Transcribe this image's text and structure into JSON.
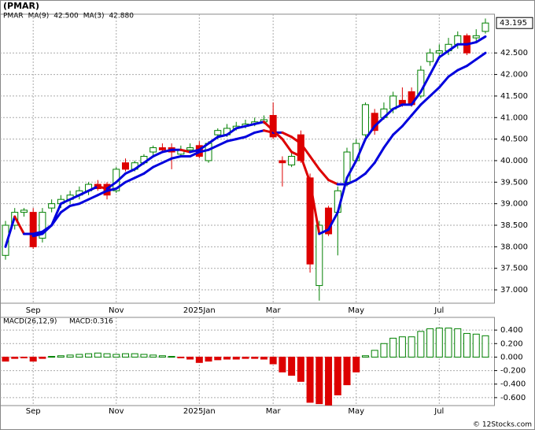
{
  "chart_data": {
    "type": "candlestick",
    "title": "(PMAR)",
    "ticker": "PMAR",
    "ticker_color": "#008000",
    "legend": [
      {
        "name": "MA(9)",
        "value": "42.500"
      },
      {
        "name": "MA(3)",
        "value": "42.880"
      }
    ],
    "categories": [
      null,
      null,
      null,
      "Sep",
      null,
      null,
      null,
      null,
      null,
      null,
      null,
      null,
      "Nov",
      null,
      null,
      null,
      null,
      null,
      null,
      null,
      null,
      "2025Jan",
      null,
      null,
      null,
      null,
      null,
      null,
      null,
      "Mar",
      null,
      null,
      null,
      null,
      null,
      null,
      null,
      null,
      "May",
      null,
      null,
      null,
      null,
      null,
      null,
      null,
      null,
      "Jul",
      null,
      null,
      null,
      null,
      null
    ],
    "open": [
      37.8,
      38.5,
      38.8,
      38.8,
      38.2,
      38.9,
      39.0,
      39.1,
      39.2,
      39.3,
      39.45,
      39.45,
      39.3,
      39.95,
      39.8,
      39.95,
      40.2,
      40.3,
      40.3,
      40.15,
      40.25,
      40.35,
      40.0,
      40.6,
      40.6,
      40.75,
      40.8,
      40.85,
      40.9,
      41.05,
      40.0,
      39.9,
      40.6,
      39.6,
      37.1,
      38.9,
      38.8,
      39.5,
      40.0,
      40.6,
      41.1,
      41.0,
      41.2,
      41.4,
      41.6,
      41.5,
      42.3,
      42.5,
      42.55,
      42.7,
      42.9,
      42.85,
      43.0
    ],
    "high": [
      38.6,
      38.9,
      38.9,
      38.9,
      38.9,
      39.1,
      39.2,
      39.3,
      39.4,
      39.5,
      39.55,
      39.5,
      39.85,
      40.05,
      40.0,
      40.15,
      40.35,
      40.4,
      40.4,
      40.35,
      40.4,
      40.45,
      40.45,
      40.75,
      40.85,
      40.9,
      40.95,
      41.0,
      41.05,
      41.35,
      40.1,
      40.2,
      40.7,
      39.7,
      38.6,
      38.95,
      39.4,
      40.3,
      40.5,
      41.35,
      41.2,
      41.35,
      41.6,
      41.7,
      41.7,
      42.2,
      42.6,
      42.7,
      42.85,
      43.0,
      42.95,
      43.05,
      43.3
    ],
    "low": [
      37.7,
      38.4,
      38.7,
      37.95,
      38.1,
      38.8,
      38.9,
      39.0,
      39.1,
      39.2,
      39.3,
      39.1,
      39.25,
      39.75,
      39.75,
      39.9,
      40.1,
      40.2,
      39.8,
      40.1,
      40.2,
      40.05,
      39.95,
      40.5,
      40.55,
      40.7,
      40.75,
      40.8,
      40.85,
      40.5,
      39.4,
      39.85,
      39.95,
      37.4,
      36.75,
      38.25,
      37.8,
      39.4,
      39.95,
      40.55,
      40.6,
      40.95,
      41.1,
      41.25,
      41.25,
      41.45,
      42.2,
      42.4,
      42.45,
      42.6,
      42.45,
      42.75,
      42.95
    ],
    "close": [
      38.5,
      38.8,
      38.85,
      38.0,
      38.8,
      39.0,
      39.1,
      39.2,
      39.3,
      39.45,
      39.35,
      39.2,
      39.8,
      39.8,
      39.95,
      40.1,
      40.3,
      40.25,
      40.2,
      40.25,
      40.3,
      40.1,
      40.4,
      40.7,
      40.75,
      40.8,
      40.85,
      40.9,
      40.95,
      40.55,
      39.95,
      40.1,
      40.0,
      37.6,
      38.5,
      38.3,
      39.3,
      40.2,
      40.4,
      41.3,
      40.7,
      41.2,
      41.5,
      41.3,
      41.3,
      42.1,
      42.5,
      42.55,
      42.7,
      42.9,
      42.5,
      42.9,
      43.195
    ],
    "up_color": "#008000",
    "down_color": "#dd0000",
    "series": [
      {
        "name": "MA(9)",
        "color": "#0000dd",
        "values": [
          null,
          null,
          null,
          38.25,
          38.3,
          38.5,
          38.8,
          38.95,
          39.0,
          39.1,
          39.2,
          39.3,
          39.35,
          39.5,
          39.6,
          39.7,
          39.85,
          39.95,
          40.05,
          40.1,
          40.1,
          40.2,
          40.25,
          40.35,
          40.45,
          40.5,
          40.55,
          40.65,
          40.7,
          40.65,
          40.65,
          40.55,
          40.4,
          40.1,
          39.8,
          39.55,
          39.45,
          39.45,
          39.55,
          39.7,
          39.95,
          40.3,
          40.6,
          40.8,
          41.05,
          41.3,
          41.5,
          41.7,
          41.95,
          42.1,
          42.2,
          42.35,
          42.5
        ]
      },
      {
        "name": "MA(3)",
        "color": "#0000dd",
        "values": [
          38.0,
          38.7,
          38.3,
          38.3,
          38.35,
          38.5,
          39.0,
          39.1,
          39.2,
          39.3,
          39.4,
          39.35,
          39.5,
          39.7,
          39.8,
          39.95,
          40.1,
          40.2,
          40.25,
          40.25,
          40.2,
          40.25,
          40.4,
          40.55,
          40.6,
          40.75,
          40.8,
          40.85,
          40.9,
          40.7,
          40.5,
          40.2,
          40.1,
          39.5,
          38.3,
          38.4,
          38.8,
          39.6,
          40.0,
          40.5,
          40.8,
          41.0,
          41.2,
          41.3,
          41.3,
          41.6,
          42.0,
          42.4,
          42.55,
          42.7,
          42.7,
          42.75,
          42.88
        ]
      }
    ],
    "falling_color": "#dd0000",
    "price_tag": {
      "value": 43.195,
      "label": "43.195"
    },
    "ylim": [
      36.69,
      43.4
    ],
    "yticks": [
      {
        "value": 42.5,
        "label": "42.500"
      },
      {
        "value": 42,
        "label": "42.000"
      },
      {
        "value": 41.5,
        "label": "41.500"
      },
      {
        "value": 41,
        "label": "41.000"
      },
      {
        "value": 40.5,
        "label": "40.500"
      },
      {
        "value": 40,
        "label": "40.000"
      },
      {
        "value": 39.5,
        "label": "39.500"
      },
      {
        "value": 39,
        "label": "39.000"
      },
      {
        "value": 38.5,
        "label": "38.500"
      },
      {
        "value": 38,
        "label": "38.000"
      },
      {
        "value": 37.5,
        "label": "37.500"
      },
      {
        "value": 37,
        "label": "37.000"
      }
    ],
    "grid": true,
    "macd": {
      "title": "MACD(26,12,9)",
      "label": "MACD:0.316",
      "values": [
        -0.06,
        -0.02,
        -0.01,
        -0.06,
        -0.02,
        0.01,
        0.02,
        0.03,
        0.04,
        0.05,
        0.06,
        0.05,
        0.04,
        0.05,
        0.05,
        0.04,
        0.03,
        0.02,
        0.01,
        -0.01,
        -0.03,
        -0.08,
        -0.06,
        -0.04,
        -0.03,
        -0.03,
        -0.02,
        -0.02,
        -0.03,
        -0.1,
        -0.22,
        -0.27,
        -0.36,
        -0.67,
        -0.69,
        -0.71,
        -0.56,
        -0.41,
        -0.22,
        0.02,
        0.1,
        0.2,
        0.28,
        0.3,
        0.3,
        0.38,
        0.42,
        0.43,
        0.43,
        0.42,
        0.35,
        0.34,
        0.316
      ],
      "ylim": [
        -0.718,
        0.588
      ],
      "yticks": [
        {
          "value": 0.4,
          "label": "0.400"
        },
        {
          "value": 0.2,
          "label": "0.200"
        },
        {
          "value": 0,
          "label": "0.000"
        },
        {
          "value": -0.2,
          "label": "-0.200"
        },
        {
          "value": -0.4,
          "label": "-0.400"
        },
        {
          "value": -0.6,
          "label": "-0.600"
        }
      ]
    },
    "watermark": "© 12Stocks.com"
  }
}
